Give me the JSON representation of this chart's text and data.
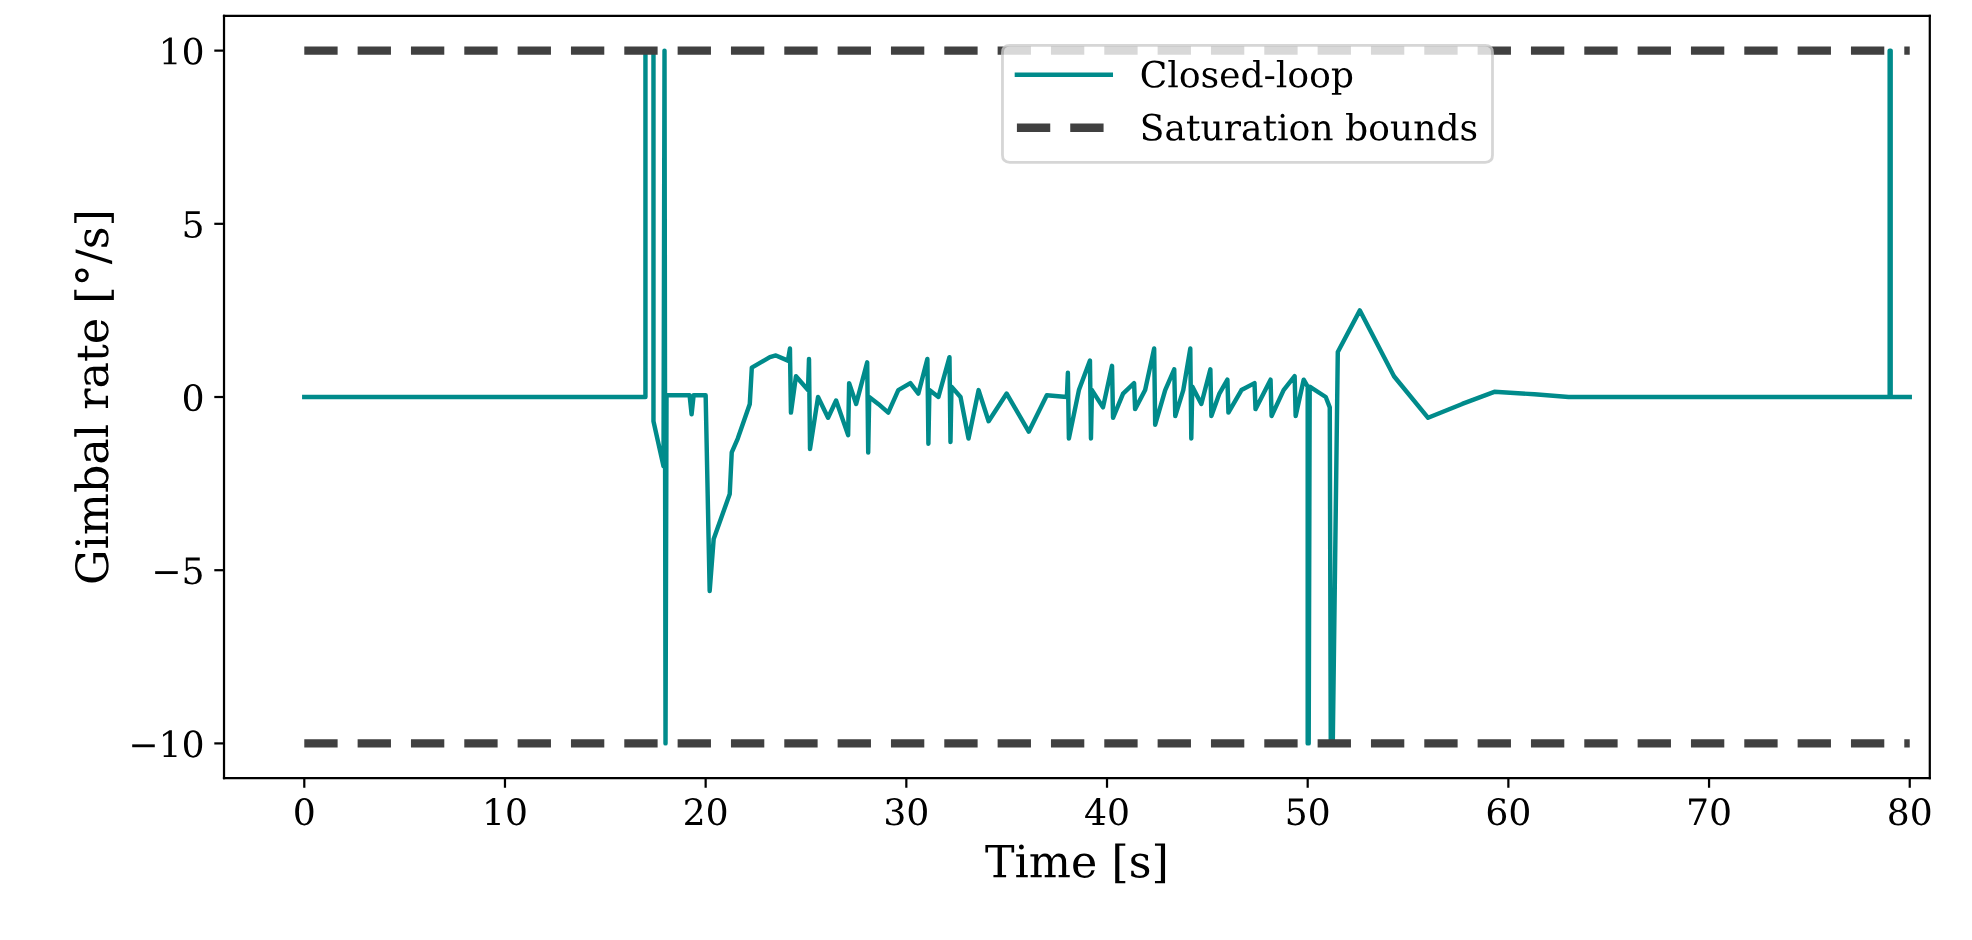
{
  "chart_data": {
    "type": "line",
    "xlabel": "Time [s]",
    "ylabel": "Gimbal rate [°/s]",
    "xlim": [
      -4,
      81
    ],
    "xticks": [
      0,
      10,
      20,
      30,
      40,
      50,
      60,
      70,
      80
    ],
    "ylim": [
      -11,
      11
    ],
    "yticks": [
      {
        "value": -10,
        "label": "−10"
      },
      {
        "value": -5,
        "label": "−5"
      },
      0,
      5,
      10
    ],
    "grid": false,
    "legend": "top",
    "series": [
      {
        "name": "Closed-loop",
        "color": "#008b8b",
        "line_style": "solid",
        "x": [
          0,
          17.0,
          17.0,
          17.4,
          17.4,
          17.9,
          17.95,
          18.0,
          18.05,
          19.2,
          19.3,
          19.4,
          20.0,
          20.2,
          20.4,
          21.2,
          21.3,
          21.6,
          22.2,
          22.3,
          23.2,
          23.5,
          24.1,
          24.2,
          24.25,
          24.5,
          25.1,
          25.15,
          25.2,
          25.6,
          26.1,
          26.5,
          27.1,
          27.15,
          27.5,
          28.05,
          28.1,
          28.15,
          28.6,
          29.1,
          29.6,
          30.2,
          30.6,
          31.05,
          31.1,
          31.15,
          31.6,
          32.15,
          32.2,
          32.25,
          32.7,
          33.1,
          33.6,
          34.1,
          35.0,
          36.1,
          37.0,
          38.0,
          38.05,
          38.1,
          38.6,
          39.15,
          39.2,
          39.25,
          39.8,
          40.25,
          40.3,
          40.8,
          41.35,
          41.4,
          41.9,
          42.35,
          42.4,
          42.9,
          43.35,
          43.4,
          43.8,
          44.15,
          44.2,
          44.25,
          44.7,
          45.15,
          45.2,
          45.6,
          46.0,
          46.05,
          46.7,
          47.35,
          47.4,
          47.8,
          48.15,
          48.2,
          48.8,
          49.35,
          49.4,
          49.8,
          50.0,
          50.0,
          50.05,
          50.1,
          50.9,
          51.1,
          51.15,
          51.25,
          51.5,
          52.6,
          54.3,
          56.0,
          57.7,
          59.3,
          61.3,
          63.0,
          79.0,
          79.0,
          79.05,
          79.05,
          80.0
        ],
        "values": [
          0,
          0,
          10,
          10,
          -0.7,
          -2.0,
          10,
          -10,
          0.05,
          0.05,
          -0.5,
          0.05,
          0.05,
          -5.6,
          -4.1,
          -2.8,
          -1.6,
          -1.2,
          -0.2,
          0.85,
          1.15,
          1.2,
          1.05,
          1.4,
          -0.45,
          0.6,
          0.2,
          1.1,
          -1.5,
          0.0,
          -0.6,
          -0.1,
          -1.1,
          0.4,
          -0.2,
          1.0,
          -1.6,
          0.0,
          -0.2,
          -0.45,
          0.2,
          0.4,
          0.1,
          1.1,
          -1.35,
          0.2,
          0.0,
          1.15,
          -1.3,
          0.3,
          0.0,
          -1.2,
          0.2,
          -0.7,
          0.1,
          -1.0,
          0.05,
          0.0,
          0.7,
          -1.2,
          0.2,
          1.05,
          -1.2,
          0.2,
          -0.3,
          0.9,
          -0.6,
          0.1,
          0.4,
          -0.35,
          0.2,
          1.4,
          -0.8,
          0.2,
          0.8,
          -0.55,
          0.2,
          1.4,
          -1.2,
          0.3,
          -0.2,
          0.8,
          -0.55,
          0.1,
          0.5,
          -0.45,
          0.2,
          0.4,
          -0.35,
          0.1,
          0.5,
          -0.55,
          0.2,
          0.6,
          -0.55,
          0.5,
          0.3,
          -10,
          -10,
          0.3,
          0.0,
          -0.3,
          -10,
          -10,
          1.3,
          2.5,
          0.6,
          -0.6,
          -0.2,
          0.15,
          0.08,
          0.0,
          0.0,
          10,
          10,
          0,
          0
        ]
      }
    ],
    "ref_lines": [
      {
        "axis": "y",
        "value": 10,
        "label": "Saturation bounds",
        "color": "#404040",
        "line_style": "dashed"
      },
      {
        "axis": "y",
        "value": -10,
        "label": null,
        "color": "#404040",
        "line_style": "dashed"
      }
    ]
  }
}
